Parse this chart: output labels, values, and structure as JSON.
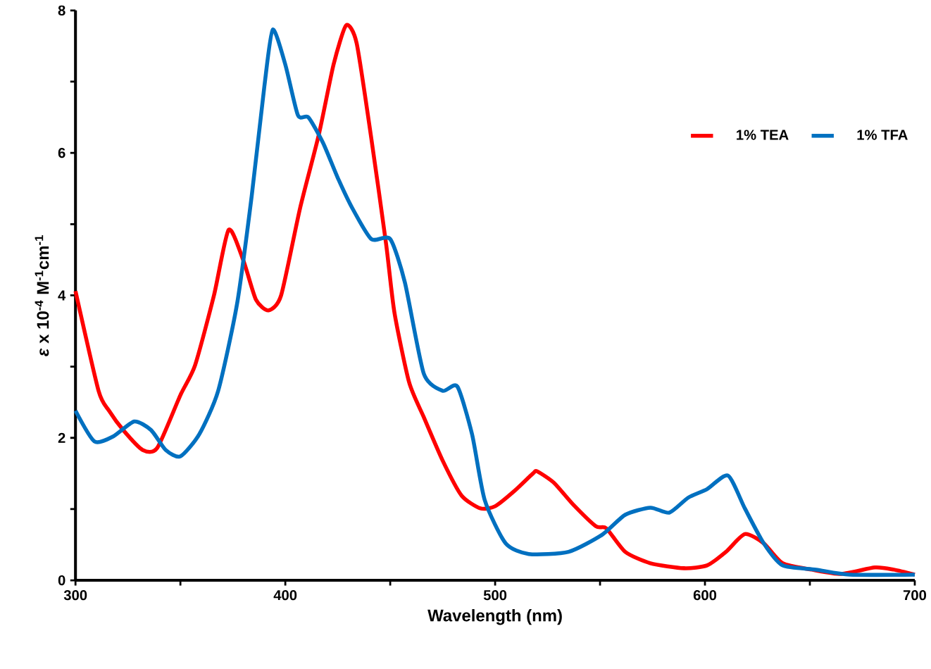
{
  "chart_data": {
    "type": "line",
    "xlabel": "Wavelength (nm)",
    "ylabel": "*ε* x 10$^{-4}$ M$^{-1}$cm$^{-1}$",
    "xlim": [
      300,
      700
    ],
    "ylim": [
      0,
      8
    ],
    "xticks": [
      300,
      {
        "value": 350,
        "label": null
      },
      400,
      {
        "value": 450,
        "label": null
      },
      500,
      {
        "value": 550,
        "label": null
      },
      600,
      {
        "value": 650,
        "label": null
      },
      700
    ],
    "yticks": [
      0,
      {
        "value": 1,
        "label": null
      },
      2,
      {
        "value": 3,
        "label": null
      },
      4,
      {
        "value": 5,
        "label": null
      },
      6,
      {
        "value": 7,
        "label": null
      },
      8
    ],
    "grid": false,
    "legend": "top right",
    "marker": "none",
    "line_style": "solid",
    "series": [
      {
        "name": "1% TEA",
        "color": "#ff0000",
        "x": [
          300,
          311,
          316,
          323,
          332,
          339,
          350,
          357,
          366,
          373,
          380,
          386,
          392,
          398,
          407,
          416,
          423,
          429,
          434,
          441,
          448,
          452,
          459,
          466,
          475,
          484,
          493,
          500,
          509,
          518,
          520,
          528,
          537,
          548,
          553,
          562,
          574,
          590,
          601,
          610,
          619,
          628,
          637,
          651,
          665,
          681,
          690,
          700
        ],
        "values": [
          4.06,
          2.66,
          2.38,
          2.1,
          1.83,
          1.86,
          2.6,
          3.02,
          4.0,
          4.92,
          4.49,
          3.94,
          3.79,
          4.0,
          5.22,
          6.26,
          7.24,
          7.79,
          7.54,
          6.2,
          4.73,
          3.76,
          2.78,
          2.29,
          1.68,
          1.19,
          1.01,
          1.04,
          1.25,
          1.5,
          1.53,
          1.37,
          1.07,
          0.76,
          0.73,
          0.4,
          0.24,
          0.17,
          0.21,
          0.4,
          0.65,
          0.52,
          0.24,
          0.15,
          0.09,
          0.18,
          0.15,
          0.08
        ]
      },
      {
        "name": "1% TFA",
        "color": "#0070c0",
        "x": [
          300,
          309,
          318,
          328,
          336,
          343,
          350,
          359,
          368,
          377,
          384,
          390,
          394,
          400,
          406,
          411,
          418,
          425,
          432,
          441,
          450,
          457,
          466,
          475,
          482,
          489,
          495,
          505,
          516,
          535,
          551,
          562,
          574,
          583,
          592,
          601,
          611,
          619,
          628,
          637,
          653,
          669,
          700
        ],
        "values": [
          2.38,
          1.95,
          2.02,
          2.23,
          2.11,
          1.83,
          1.74,
          2.05,
          2.66,
          3.88,
          5.4,
          6.93,
          7.73,
          7.24,
          6.53,
          6.5,
          6.14,
          5.65,
          5.22,
          4.79,
          4.79,
          4.18,
          2.9,
          2.66,
          2.72,
          2.05,
          1.13,
          0.52,
          0.37,
          0.4,
          0.64,
          0.92,
          1.02,
          0.95,
          1.16,
          1.28,
          1.47,
          1.01,
          0.52,
          0.21,
          0.15,
          0.08,
          0.08
        ]
      }
    ]
  }
}
